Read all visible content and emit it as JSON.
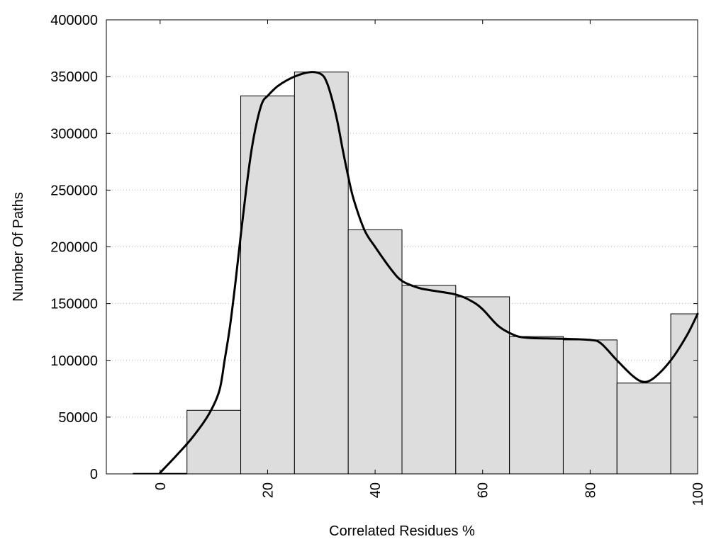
{
  "chart_data": {
    "type": "bar",
    "subtype": "histogram",
    "xlabel": "Correlated Residues %",
    "ylabel": "Number Of Paths",
    "xlim": [
      -10,
      100
    ],
    "ylim": [
      0,
      400000
    ],
    "x_ticks": [
      0,
      20,
      40,
      60,
      80,
      100
    ],
    "x_tick_labels": [
      "0",
      "20",
      "40",
      "60",
      "80",
      "100"
    ],
    "y_ticks": [
      0,
      50000,
      100000,
      150000,
      200000,
      250000,
      300000,
      350000,
      400000
    ],
    "y_tick_labels": [
      "0",
      "50000",
      "100000",
      "150000",
      "200000",
      "250000",
      "300000",
      "350000",
      "400000"
    ],
    "grid": "horizontal dotted",
    "bar_color": "#dddddd",
    "bars": [
      {
        "start": -5,
        "end": 5,
        "value": 500
      },
      {
        "start": 5,
        "end": 15,
        "value": 56000
      },
      {
        "start": 15,
        "end": 25,
        "value": 333000
      },
      {
        "start": 25,
        "end": 35,
        "value": 354000
      },
      {
        "start": 35,
        "end": 45,
        "value": 215000
      },
      {
        "start": 45,
        "end": 55,
        "value": 166000
      },
      {
        "start": 55,
        "end": 65,
        "value": 156000
      },
      {
        "start": 65,
        "end": 75,
        "value": 121000
      },
      {
        "start": 75,
        "end": 85,
        "value": 118000
      },
      {
        "start": 85,
        "end": 95,
        "value": 80000
      },
      {
        "start": 95,
        "end": 105,
        "value": 141000
      }
    ],
    "curve": {
      "x": [
        0,
        3,
        6,
        9,
        11,
        12,
        13,
        14,
        15,
        16,
        17,
        18,
        19,
        20,
        22,
        25,
        28,
        30,
        31,
        32,
        33,
        34,
        35,
        36,
        38,
        40,
        43,
        45,
        48,
        50,
        55,
        58,
        60,
        63,
        66,
        68,
        70,
        75,
        80,
        82,
        85,
        88,
        90,
        92,
        95,
        98,
        100
      ],
      "y": [
        1000,
        16000,
        32000,
        52000,
        73000,
        100000,
        130000,
        168000,
        210000,
        250000,
        285000,
        310000,
        327000,
        333000,
        342000,
        350000,
        354000,
        352000,
        345000,
        330000,
        310000,
        285000,
        262000,
        242000,
        215000,
        200000,
        180000,
        170000,
        164000,
        162000,
        158000,
        152000,
        145000,
        130000,
        122000,
        120000,
        119500,
        119000,
        118000,
        115000,
        100000,
        86000,
        81000,
        85000,
        100000,
        122000,
        141000
      ]
    }
  }
}
